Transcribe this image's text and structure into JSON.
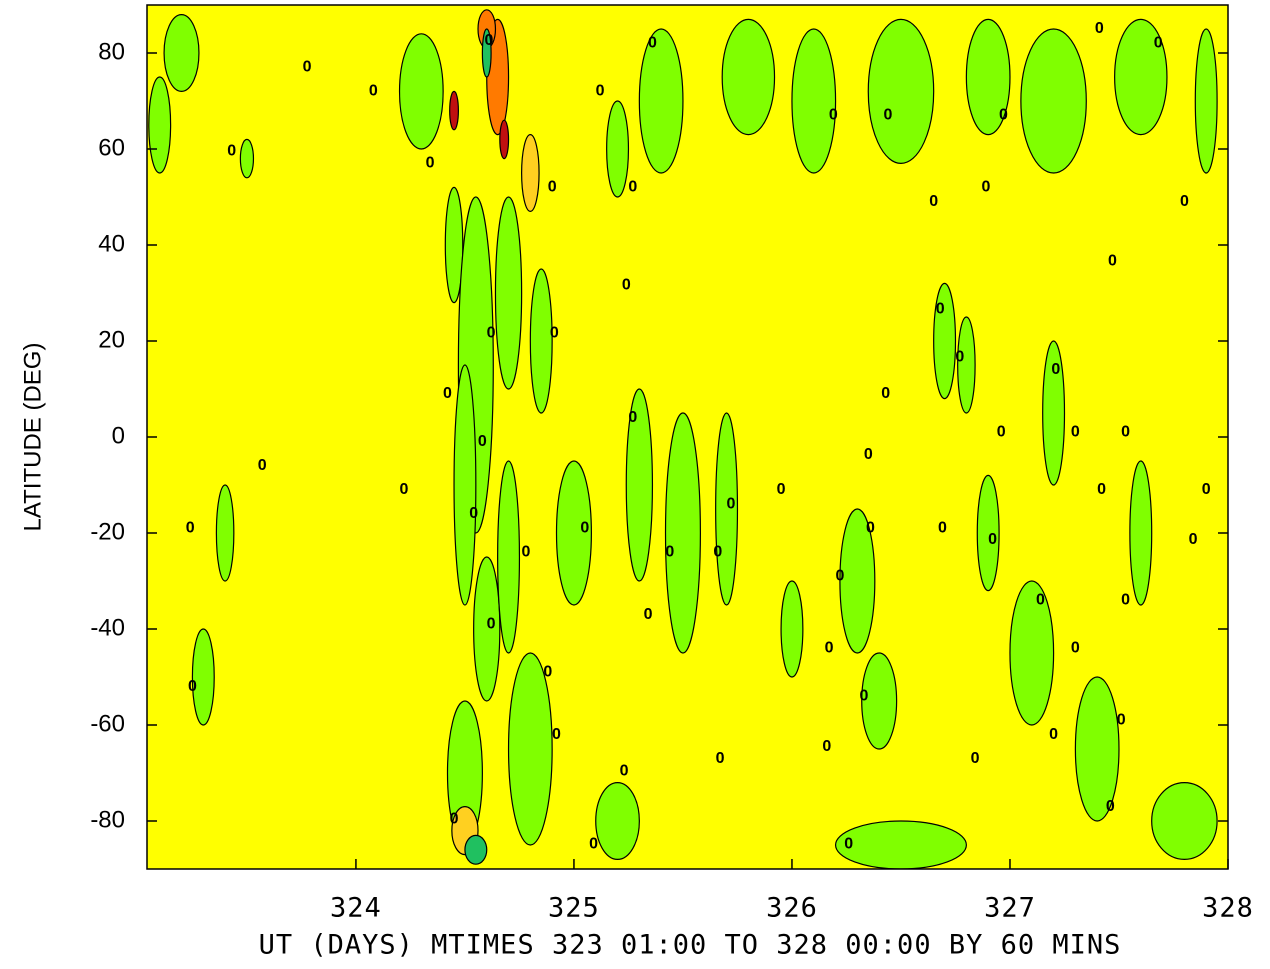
{
  "chart_data": {
    "type": "contour",
    "x_label": "UT (DAYS) MTIMES 323 01:00 TO 328 00:00 BY   60 MINS",
    "y_label": "LATITUDE (DEG)",
    "xlim": [
      323.0417,
      328
    ],
    "ylim": [
      -90,
      90
    ],
    "xticks": [
      324,
      325,
      326,
      327,
      328
    ],
    "yticks": [
      -80,
      -60,
      -40,
      -20,
      0,
      20,
      40,
      60,
      80
    ],
    "background_color": "#ffff00",
    "level_colors": {
      "-2": "#20c060",
      "-1": "#80ff00",
      "1": "#ffd020",
      "2": "#ff7a00",
      "3": "#c01010"
    },
    "regions": [
      {
        "x": 323.1,
        "y": 65,
        "dx": 0.05,
        "dy": 10,
        "level": -1
      },
      {
        "x": 323.2,
        "y": 80,
        "dx": 0.08,
        "dy": 8,
        "level": -1
      },
      {
        "x": 323.5,
        "y": 58,
        "dx": 0.03,
        "dy": 4,
        "level": -1
      },
      {
        "x": 324.3,
        "y": 72,
        "dx": 0.1,
        "dy": 12,
        "level": -1
      },
      {
        "x": 324.45,
        "y": 40,
        "dx": 0.04,
        "dy": 12,
        "level": -1
      },
      {
        "x": 324.55,
        "y": 15,
        "dx": 0.08,
        "dy": 35,
        "level": -1
      },
      {
        "x": 324.7,
        "y": 30,
        "dx": 0.06,
        "dy": 20,
        "level": -1
      },
      {
        "x": 324.85,
        "y": 20,
        "dx": 0.05,
        "dy": 15,
        "level": -1
      },
      {
        "x": 324.5,
        "y": -10,
        "dx": 0.05,
        "dy": 25,
        "level": -1
      },
      {
        "x": 324.6,
        "y": -40,
        "dx": 0.06,
        "dy": 15,
        "level": -1
      },
      {
        "x": 324.7,
        "y": -25,
        "dx": 0.05,
        "dy": 20,
        "level": -1
      },
      {
        "x": 325.0,
        "y": -20,
        "dx": 0.08,
        "dy": 15,
        "level": -1
      },
      {
        "x": 325.3,
        "y": -10,
        "dx": 0.06,
        "dy": 20,
        "level": -1
      },
      {
        "x": 325.5,
        "y": -20,
        "dx": 0.08,
        "dy": 25,
        "level": -1
      },
      {
        "x": 325.7,
        "y": -15,
        "dx": 0.05,
        "dy": 20,
        "level": -1
      },
      {
        "x": 325.4,
        "y": 70,
        "dx": 0.1,
        "dy": 15,
        "level": -1
      },
      {
        "x": 325.2,
        "y": 60,
        "dx": 0.05,
        "dy": 10,
        "level": -1
      },
      {
        "x": 325.8,
        "y": 75,
        "dx": 0.12,
        "dy": 12,
        "level": -1
      },
      {
        "x": 326.1,
        "y": 70,
        "dx": 0.1,
        "dy": 15,
        "level": -1
      },
      {
        "x": 326.5,
        "y": 72,
        "dx": 0.15,
        "dy": 15,
        "level": -1
      },
      {
        "x": 326.9,
        "y": 75,
        "dx": 0.1,
        "dy": 12,
        "level": -1
      },
      {
        "x": 327.2,
        "y": 70,
        "dx": 0.15,
        "dy": 15,
        "level": -1
      },
      {
        "x": 327.6,
        "y": 75,
        "dx": 0.12,
        "dy": 12,
        "level": -1
      },
      {
        "x": 327.9,
        "y": 70,
        "dx": 0.05,
        "dy": 15,
        "level": -1
      },
      {
        "x": 326.7,
        "y": 20,
        "dx": 0.05,
        "dy": 12,
        "level": -1
      },
      {
        "x": 326.8,
        "y": 15,
        "dx": 0.04,
        "dy": 10,
        "level": -1
      },
      {
        "x": 327.2,
        "y": 5,
        "dx": 0.05,
        "dy": 15,
        "level": -1
      },
      {
        "x": 326.3,
        "y": -30,
        "dx": 0.08,
        "dy": 15,
        "level": -1
      },
      {
        "x": 326.4,
        "y": -55,
        "dx": 0.08,
        "dy": 10,
        "level": -1
      },
      {
        "x": 326.9,
        "y": -20,
        "dx": 0.05,
        "dy": 12,
        "level": -1
      },
      {
        "x": 327.1,
        "y": -45,
        "dx": 0.1,
        "dy": 15,
        "level": -1
      },
      {
        "x": 327.4,
        "y": -65,
        "dx": 0.1,
        "dy": 15,
        "level": -1
      },
      {
        "x": 327.6,
        "y": -20,
        "dx": 0.05,
        "dy": 15,
        "level": -1
      },
      {
        "x": 327.8,
        "y": -80,
        "dx": 0.15,
        "dy": 8,
        "level": -1
      },
      {
        "x": 326.5,
        "y": -85,
        "dx": 0.3,
        "dy": 5,
        "level": -1
      },
      {
        "x": 324.5,
        "y": -70,
        "dx": 0.08,
        "dy": 15,
        "level": -1
      },
      {
        "x": 324.8,
        "y": -65,
        "dx": 0.1,
        "dy": 20,
        "level": -1
      },
      {
        "x": 325.2,
        "y": -80,
        "dx": 0.1,
        "dy": 8,
        "level": -1
      },
      {
        "x": 323.3,
        "y": -50,
        "dx": 0.05,
        "dy": 10,
        "level": -1
      },
      {
        "x": 323.4,
        "y": -20,
        "dx": 0.04,
        "dy": 10,
        "level": -1
      },
      {
        "x": 326.0,
        "y": -40,
        "dx": 0.05,
        "dy": 10,
        "level": -1
      },
      {
        "x": 324.8,
        "y": 55,
        "dx": 0.04,
        "dy": 8,
        "level": 1
      },
      {
        "x": 324.5,
        "y": -82,
        "dx": 0.06,
        "dy": 5,
        "level": 1
      },
      {
        "x": 324.65,
        "y": 75,
        "dx": 0.05,
        "dy": 12,
        "level": 2
      },
      {
        "x": 324.6,
        "y": 85,
        "dx": 0.04,
        "dy": 4,
        "level": 2
      },
      {
        "x": 324.45,
        "y": 68,
        "dx": 0.02,
        "dy": 4,
        "level": 3
      },
      {
        "x": 324.68,
        "y": 62,
        "dx": 0.02,
        "dy": 4,
        "level": 3
      },
      {
        "x": 324.6,
        "y": 80,
        "dx": 0.02,
        "dy": 5,
        "level": -2
      },
      {
        "x": 324.55,
        "y": -86,
        "dx": 0.05,
        "dy": 3,
        "level": -2
      }
    ],
    "contour_labels": {
      "x": [
        323.776,
        324.08,
        323.43,
        324.34,
        324.61,
        325.12,
        325.36,
        326.19,
        326.44,
        326.97,
        327.41,
        327.68,
        324.9,
        325.27,
        326.65,
        326.89,
        327.8,
        327.47,
        325.24,
        326.68,
        324.62,
        324.91,
        326.77,
        327.21,
        324.42,
        325.27,
        326.43,
        324.58,
        326.96,
        327.3,
        327.53,
        323.57,
        324.22,
        325.95,
        326.35,
        327.42,
        327.9,
        323.24,
        324.54,
        325.05,
        325.72,
        326.36,
        326.69,
        326.92,
        327.84,
        324.78,
        325.44,
        325.66,
        326.22,
        327.14,
        327.53,
        325.34,
        324.62,
        326.17,
        327.3,
        324.88,
        323.25,
        326.33,
        327.51,
        327.2,
        324.92,
        326.16,
        326.84,
        325.67,
        325.23,
        327.46,
        324.45,
        325.09,
        326.26
      ],
      "y": [
        77,
        72,
        59.5,
        57,
        82.5,
        72,
        82,
        67,
        67,
        67,
        85,
        82,
        52,
        52,
        49,
        52,
        49,
        36.6,
        31.6,
        26.6,
        21.6,
        21.6,
        16.6,
        14,
        9,
        4,
        9,
        -1,
        1,
        1,
        1,
        -6,
        -11,
        -11,
        -3.7,
        -11,
        -11,
        -19,
        -16,
        -19,
        -14,
        -19,
        -19,
        -21.4,
        -21.4,
        -24,
        -24,
        -24,
        -29,
        -34,
        -34,
        -37,
        -39,
        -44,
        -44,
        -49,
        -52,
        -54,
        -59,
        -62,
        -62,
        -64.5,
        -67,
        -67,
        -69.6,
        -77,
        -79.6,
        -84.8,
        -84.8
      ],
      "values": [
        0,
        0,
        0,
        0,
        0,
        0,
        0,
        0,
        0,
        0,
        0,
        0,
        0,
        0,
        0,
        0,
        0,
        0,
        0,
        0,
        0,
        0,
        0,
        0,
        0,
        0,
        0,
        0,
        0,
        0,
        0,
        0,
        0,
        0,
        0,
        0,
        0,
        0,
        0,
        0,
        0,
        0,
        0,
        0,
        0,
        0,
        0,
        0,
        0,
        0,
        0,
        0,
        0,
        0,
        0,
        0,
        0,
        0,
        0,
        0,
        0,
        0,
        0,
        0,
        0,
        0,
        0,
        0,
        0
      ]
    }
  }
}
